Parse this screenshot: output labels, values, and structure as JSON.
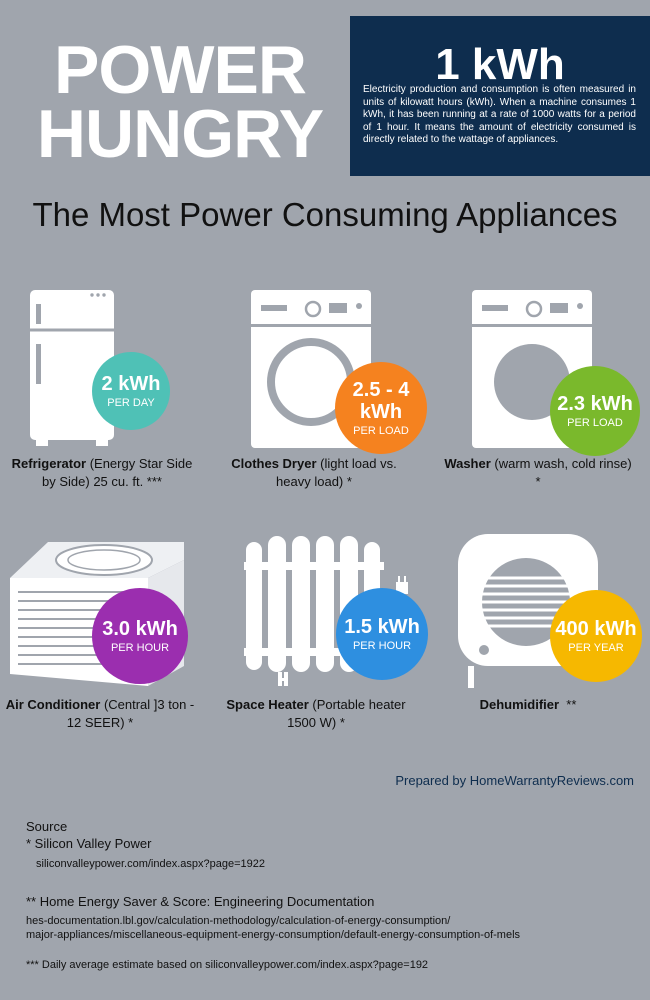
{
  "header": {
    "title_line1": "POWER",
    "title_line2": "HUNGRY"
  },
  "kwh_box": {
    "title": "1 kWh",
    "text": "Electricity production and consumption is often measured in units of kilowatt hours (kWh). When a machine consumes 1 kWh, it has been running at a rate of 1000 watts for a period of 1 hour. It means the amount of electricity consumed is directly related to the wattage of appliances."
  },
  "subtitle": "The Most Power Consuming Appliances",
  "appliances": [
    {
      "value": "2 kWh",
      "unit": "PER DAY",
      "name": "Refrigerator",
      "desc": " (Energy Star Side by Side) 25 cu. ft. ***",
      "color": "#4fc1b6",
      "icon": "refrigerator-icon"
    },
    {
      "value": "2.5 - 4 kWh",
      "unit": "PER LOAD",
      "name": "Clothes Dryer",
      "desc": " (light load vs. heavy load) *",
      "color": "#f5821f",
      "icon": "clothes-dryer-icon"
    },
    {
      "value": "2.3 kWh",
      "unit": "PER LOAD",
      "name": "Washer",
      "desc": " (warm wash, cold rinse) *",
      "color": "#7ab92c",
      "icon": "washer-icon"
    },
    {
      "value": "3.0 kWh",
      "unit": "PER HOUR",
      "name": "Air Conditioner",
      "desc": " (Central ]3 ton - 12 SEER) *",
      "color": "#9b2eaf",
      "icon": "air-conditioner-icon"
    },
    {
      "value": "1.5 kWh",
      "unit": "PER HOUR",
      "name": "Space Heater",
      "desc": " (Portable heater 1500 W) *",
      "color": "#2e8fe0",
      "icon": "space-heater-icon"
    },
    {
      "value": "400 kWh",
      "unit": "PER YEAR",
      "name": "Dehumidifier",
      "desc": "  **",
      "color": "#f6b800",
      "icon": "dehumidifier-icon"
    }
  ],
  "prepared_by": "Prepared by HomeWarrantyReviews.com",
  "sources": {
    "heading": "Source",
    "s1_title": "* Silicon Valley Power",
    "s1_url": "siliconvalleypower.com/index.aspx?page=1922",
    "s2_title": "** Home Energy Saver & Score: Engineering Documentation",
    "s2_url1": "hes-documentation.lbl.gov/calculation-methodology/calculation-of-energy-consumption/",
    "s2_url2": "major-appliances/miscellaneous-equipment-energy-consumption/default-energy-consumption-of-mels",
    "s3": "*** Daily average estimate based on siliconvalleypower.com/index.aspx?page=192"
  }
}
